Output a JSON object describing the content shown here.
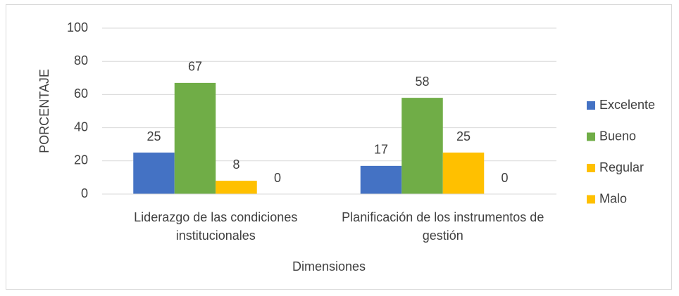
{
  "chart_data": {
    "type": "bar",
    "categories": [
      "Liderazgo de las condiciones institucionales",
      "Planificación de los instrumentos de gestión"
    ],
    "series": [
      {
        "name": "Excelente",
        "color": "#4472c4",
        "values": [
          25,
          17
        ]
      },
      {
        "name": "Bueno",
        "color": "#70ad47",
        "values": [
          67,
          58
        ]
      },
      {
        "name": "Regular",
        "color": "#ffc000",
        "values": [
          8,
          25
        ]
      },
      {
        "name": "Malo",
        "color": "#ffc000",
        "values": [
          0,
          0
        ]
      }
    ],
    "x_label": "Dimensiones",
    "y_label": "PORCENTAJE",
    "ylim": [
      0,
      100
    ],
    "yticks": [
      0,
      20,
      40,
      60,
      80,
      100
    ],
    "grid": true,
    "legend": "right"
  }
}
